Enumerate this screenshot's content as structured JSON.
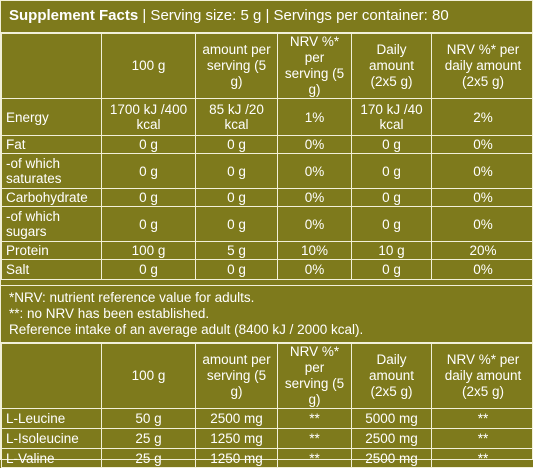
{
  "title": {
    "main": "Supplement Facts",
    "serving": " | Serving size: 5 g | Servings per container: 80"
  },
  "headers": [
    "",
    "100 g",
    "amount per serving (5 g)",
    "NRV %* per serving (5 g)",
    "Daily amount (2x5 g)",
    "NRV %* per daily amount (2x5 g)"
  ],
  "nutrition_rows": [
    {
      "label": "Energy",
      "cells": [
        "1700 kJ /400 kcal",
        "85 kJ /20 kcal",
        "1%",
        "170 kJ /40 kcal",
        "2%"
      ]
    },
    {
      "label": "Fat",
      "cells": [
        "0 g",
        "0 g",
        "0%",
        "0 g",
        "0%"
      ]
    },
    {
      "label": "-of which saturates",
      "cells": [
        "0 g",
        "0 g",
        "0%",
        "0 g",
        "0%"
      ]
    },
    {
      "label": "Carbohydrate",
      "cells": [
        "0 g",
        "0 g",
        "0%",
        "0 g",
        "0%"
      ]
    },
    {
      "label": "-of which sugars",
      "cells": [
        "0 g",
        "0 g",
        "0%",
        "0 g",
        "0%"
      ]
    },
    {
      "label": "Protein",
      "cells": [
        "100 g",
        "5 g",
        "10%",
        "10 g",
        "20%"
      ]
    },
    {
      "label": "Salt",
      "cells": [
        "0 g",
        "0 g",
        "0%",
        "0 g",
        "0%"
      ]
    }
  ],
  "notes": [
    "*NRV: nutrient reference value for adults.",
    "**: no NRV has been established.",
    "Reference intake of an average adult (8400 kJ / 2000 kcal)."
  ],
  "amino_rows": [
    {
      "label": "L-Leucine",
      "cells": [
        "50 g",
        "2500 mg",
        "**",
        "5000 mg",
        "**"
      ]
    },
    {
      "label": "L-Isoleucine",
      "cells": [
        "25 g",
        "1250 mg",
        "**",
        "2500 mg",
        "**"
      ]
    },
    {
      "label": "L-Valine",
      "cells": [
        "25 g",
        "1250 mg",
        "**",
        "2500 mg",
        "**"
      ]
    }
  ],
  "colors": {
    "background": "#7e7a1c",
    "text": "#ffffff",
    "border": "#f2f0d8"
  }
}
